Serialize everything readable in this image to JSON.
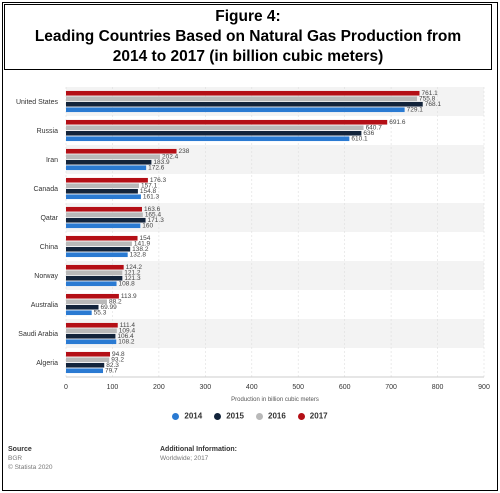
{
  "title": {
    "line1": "Figure 4:",
    "line2": "Leading Countries Based on Natural Gas Production from",
    "line3": "2014 to 2017 (in billion cubic meters)"
  },
  "chart_data": {
    "type": "bar",
    "orientation": "horizontal",
    "categories": [
      "United States",
      "Russia",
      "Iran",
      "Canada",
      "Qatar",
      "China",
      "Norway",
      "Australia",
      "Saudi Arabia",
      "Algeria"
    ],
    "series": [
      {
        "name": "2017",
        "color": "#b40f16",
        "values": [
          761.1,
          691.6,
          238,
          176.3,
          163.6,
          154,
          124.2,
          113.9,
          111.4,
          94.8
        ]
      },
      {
        "name": "2016",
        "color": "#b9b9b9",
        "values": [
          755.8,
          640.7,
          202.4,
          157.1,
          165.4,
          141.9,
          121.2,
          88.2,
          109.4,
          93.2
        ]
      },
      {
        "name": "2015",
        "color": "#13243b",
        "values": [
          768.1,
          636,
          183.9,
          154.8,
          171.3,
          138.2,
          121.3,
          69.99,
          106.4,
          82.3
        ]
      },
      {
        "name": "2014",
        "color": "#2a7ad2",
        "values": [
          729.1,
          610.1,
          172.6,
          161.3,
          160,
          132.8,
          108.8,
          55.3,
          108.2,
          79.7
        ]
      }
    ],
    "data_labels": [
      [
        "761.1",
        "755.8",
        "768.1",
        "729.1"
      ],
      [
        "691.6",
        "640.7",
        "636",
        "610.1"
      ],
      [
        "238",
        "202.4",
        "183.9",
        "172.6"
      ],
      [
        "176.3",
        "157.1",
        "154.8",
        "161.3"
      ],
      [
        "163.6",
        "165.4",
        "171.3",
        "160"
      ],
      [
        "154",
        "141.9",
        "138.2",
        "132.8"
      ],
      [
        "124.2",
        "121.2",
        "121.3",
        "108.8"
      ],
      [
        "113.9",
        "88.2",
        "69.99",
        "55.3"
      ],
      [
        "111.4",
        "109.4",
        "106.4",
        "108.2"
      ],
      [
        "94.8",
        "93.2",
        "82.3",
        "79.7"
      ]
    ],
    "xlabel": "Production in billion cubic meters",
    "ylabel": "",
    "xlim": [
      0,
      900
    ],
    "xticks": [
      "0",
      "100",
      "200",
      "300",
      "400",
      "500",
      "600",
      "700",
      "800",
      "900"
    ],
    "grid": true,
    "legend_position": "bottom",
    "legend": [
      {
        "label": "2014",
        "color": "#2a7ad2"
      },
      {
        "label": "2015",
        "color": "#13243b"
      },
      {
        "label": "2016",
        "color": "#b9b9b9"
      },
      {
        "label": "2017",
        "color": "#b40f16"
      }
    ]
  },
  "footer": {
    "source_heading": "Source",
    "source_lines": [
      "BGR",
      "© Statista 2020"
    ],
    "info_heading": "Additional Information:",
    "info_lines": [
      "Worldwide; 2017"
    ]
  }
}
